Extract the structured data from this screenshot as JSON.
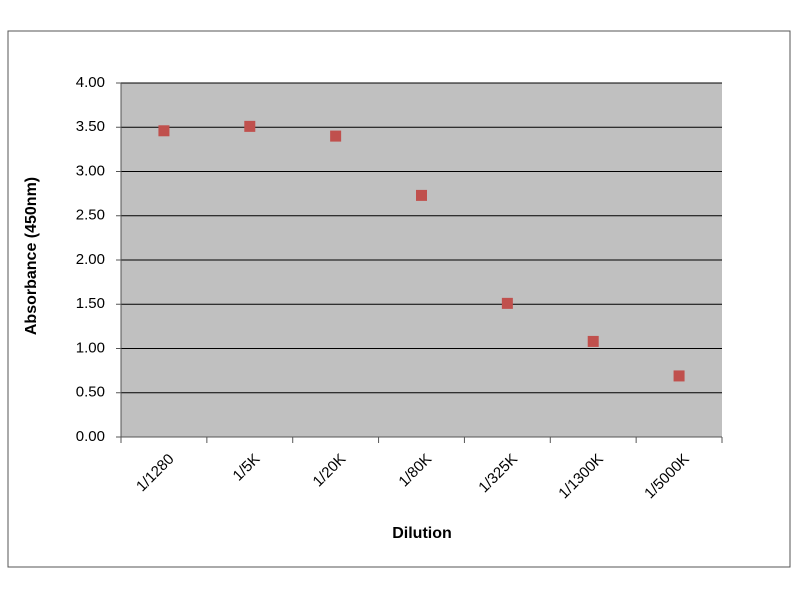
{
  "chart_data": {
    "type": "line",
    "x_label": "Dilution",
    "y_label": "Absorbance (450nm)",
    "categories": [
      "1/1280",
      "1/5K",
      "1/20K",
      "1/80K",
      "1/325K",
      "1/1300K",
      "1/5000K"
    ],
    "series": [
      {
        "color": "#c0504d",
        "values": [
          3.46,
          3.51,
          3.4,
          2.73,
          1.51,
          1.08,
          0.69
        ]
      }
    ],
    "ylim": [
      0,
      4
    ],
    "yticks": [
      {
        "value": 0,
        "label": "0.00"
      },
      {
        "value": 0.5,
        "label": "0.50"
      },
      {
        "value": 1,
        "label": "1.00"
      },
      {
        "value": 1.5,
        "label": "1.50"
      },
      {
        "value": 2,
        "label": "2.00"
      },
      {
        "value": 2.5,
        "label": "2.50"
      },
      {
        "value": 3,
        "label": "3.00"
      },
      {
        "value": 3.5,
        "label": "3.50"
      },
      {
        "value": 4,
        "label": "4.00"
      }
    ],
    "grid": true,
    "plot_background": "#c0c0c0"
  }
}
